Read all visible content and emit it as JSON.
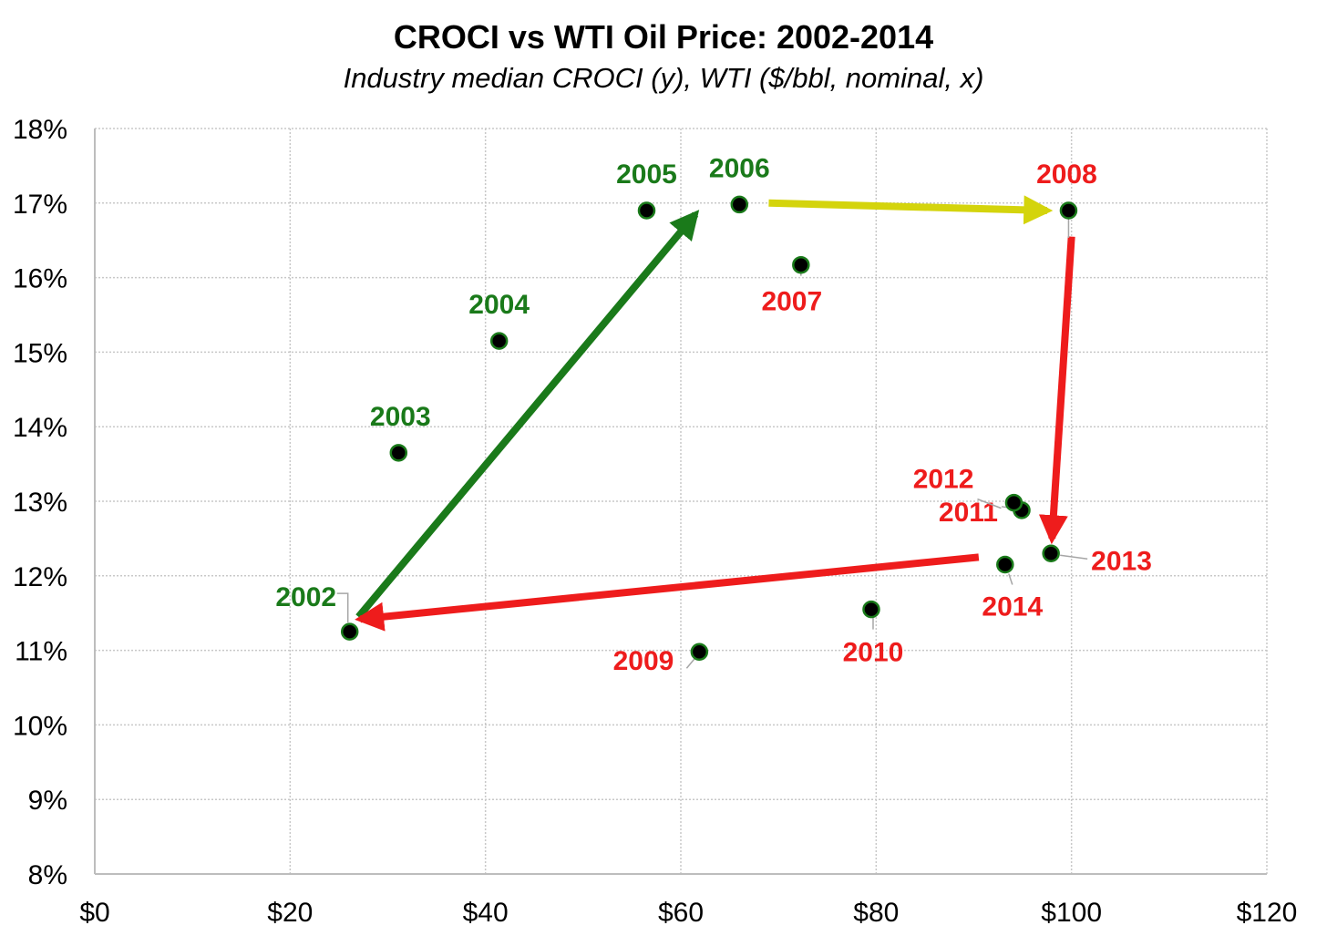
{
  "chart_data": {
    "type": "scatter",
    "title": "CROCI vs WTI Oil Price: 2002-2014",
    "subtitle": "Industry median CROCI (y), WTI ($/bbl, nominal, x)",
    "xlabel": "",
    "ylabel": "",
    "xlim": [
      0,
      120
    ],
    "ylim": [
      8,
      18
    ],
    "x_ticks": [
      0,
      20,
      40,
      60,
      80,
      100,
      120
    ],
    "x_tick_labels": [
      "$0",
      "$20",
      "$40",
      "$60",
      "$80",
      "$100",
      "$120"
    ],
    "y_ticks": [
      8,
      9,
      10,
      11,
      12,
      13,
      14,
      15,
      16,
      17,
      18
    ],
    "y_tick_labels": [
      "8%",
      "9%",
      "10%",
      "11%",
      "12%",
      "13%",
      "14%",
      "15%",
      "16%",
      "17%",
      "18%"
    ],
    "grid": true,
    "legend": "none",
    "colors": {
      "green": "#1a7a1a",
      "red": "#ee1c1c",
      "yellow": "#d4d40c",
      "marker": "#000000"
    },
    "points": [
      {
        "label": "2002",
        "x": 26.1,
        "y": 11.25,
        "color": "green"
      },
      {
        "label": "2003",
        "x": 31.1,
        "y": 13.65,
        "color": "green"
      },
      {
        "label": "2004",
        "x": 41.4,
        "y": 15.15,
        "color": "green"
      },
      {
        "label": "2005",
        "x": 56.5,
        "y": 16.9,
        "color": "green"
      },
      {
        "label": "2006",
        "x": 66.0,
        "y": 16.98,
        "color": "green"
      },
      {
        "label": "2007",
        "x": 72.3,
        "y": 16.17,
        "color": "red"
      },
      {
        "label": "2008",
        "x": 99.7,
        "y": 16.9,
        "color": "red"
      },
      {
        "label": "2009",
        "x": 61.9,
        "y": 10.98,
        "color": "red"
      },
      {
        "label": "2010",
        "x": 79.5,
        "y": 11.55,
        "color": "red"
      },
      {
        "label": "2011",
        "x": 94.9,
        "y": 12.88,
        "color": "red"
      },
      {
        "label": "2012",
        "x": 94.1,
        "y": 12.98,
        "color": "red"
      },
      {
        "label": "2013",
        "x": 97.9,
        "y": 12.3,
        "color": "red"
      },
      {
        "label": "2014",
        "x": 93.2,
        "y": 12.15,
        "color": "red"
      }
    ],
    "arrows": [
      {
        "color": "green",
        "from": [
          27,
          11.45
        ],
        "to": [
          61.5,
          16.85
        ]
      },
      {
        "color": "yellow",
        "from": [
          69,
          17.0
        ],
        "to": [
          97.5,
          16.9
        ]
      },
      {
        "color": "red",
        "from": [
          100.0,
          16.55
        ],
        "to": [
          98.0,
          12.5
        ]
      },
      {
        "color": "red",
        "from": [
          90.5,
          12.25
        ],
        "to": [
          27.2,
          11.42
        ]
      }
    ]
  }
}
